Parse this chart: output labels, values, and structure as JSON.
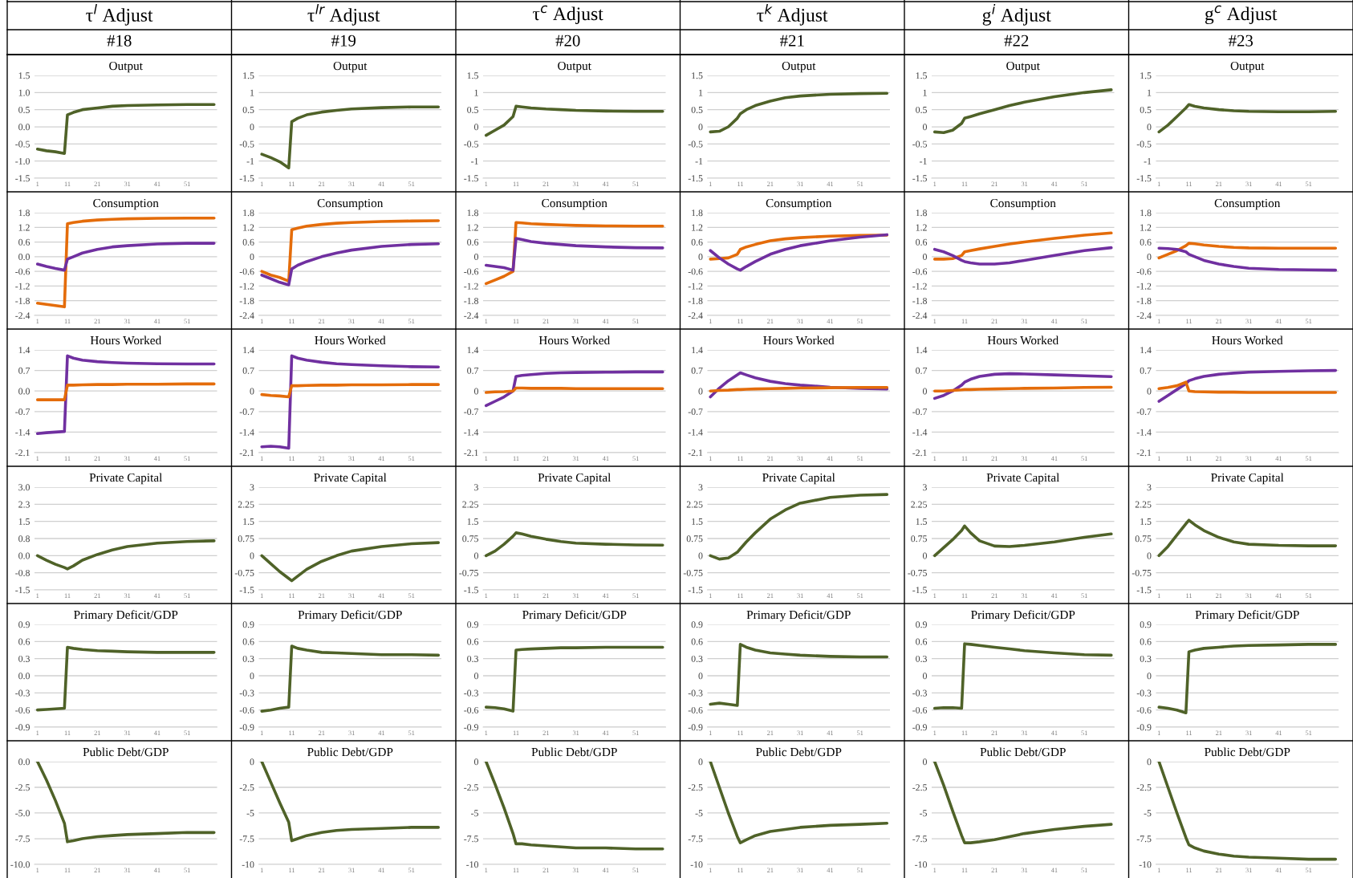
{
  "chart_data": [
    {
      "type": "line",
      "title": "Output",
      "annotations": [
        "τ$^{l}$ Adjust",
        "#18"
      ],
      "x": [
        1,
        4,
        7,
        10,
        11,
        13,
        16,
        21,
        26,
        31,
        41,
        51,
        60
      ],
      "xlim": [
        0,
        61
      ],
      "xticks": [
        1,
        11,
        21,
        31,
        41,
        51
      ],
      "ylim": [
        -1.5,
        1.5
      ],
      "yticks": [
        1.5,
        {
          "value": 1,
          "label": "1.0"
        },
        0.5,
        {
          "value": 0,
          "label": "0.0"
        },
        -0.5,
        {
          "value": -1,
          "label": "-1.0"
        },
        -1.5
      ],
      "grid": "y",
      "series": [
        {
          "color": "#4f6228",
          "values": [
            -0.65,
            -0.7,
            -0.73,
            -0.78,
            0.35,
            0.42,
            0.5,
            0.55,
            0.6,
            0.62,
            0.64,
            0.65,
            0.65
          ]
        }
      ]
    },
    {
      "type": "line",
      "title": "Output",
      "annotations": [
        "τ$^{lr}$ Adjust",
        "#19"
      ],
      "x": [
        1,
        4,
        7,
        10,
        11,
        13,
        16,
        21,
        26,
        31,
        41,
        51,
        60
      ],
      "xlim": [
        0,
        61
      ],
      "xticks": [
        1,
        11,
        21,
        31,
        41,
        51
      ],
      "ylim": [
        -1.5,
        1.5
      ],
      "yticks": [
        1.5,
        1,
        0.5,
        0,
        -0.5,
        -1,
        -1.5
      ],
      "grid": "y",
      "series": [
        {
          "color": "#4f6228",
          "values": [
            -0.8,
            -0.9,
            -1.02,
            -1.2,
            0.15,
            0.25,
            0.35,
            0.43,
            0.48,
            0.52,
            0.56,
            0.58,
            0.58
          ]
        }
      ]
    },
    {
      "type": "line",
      "title": "Output",
      "annotations": [
        "τ$^{c}$ Adjust",
        "#20"
      ],
      "x": [
        1,
        4,
        7,
        10,
        11,
        13,
        16,
        21,
        26,
        31,
        41,
        51,
        60
      ],
      "xlim": [
        0,
        61
      ],
      "xticks": [
        1,
        11,
        21,
        31,
        41,
        51
      ],
      "ylim": [
        -1.5,
        1.5
      ],
      "yticks": [
        1.5,
        1,
        0.5,
        0,
        -0.5,
        -1,
        -1.5
      ],
      "grid": "y",
      "series": [
        {
          "color": "#4f6228",
          "values": [
            -0.25,
            -0.1,
            0.05,
            0.3,
            0.6,
            0.58,
            0.55,
            0.52,
            0.5,
            0.48,
            0.46,
            0.45,
            0.45
          ]
        }
      ]
    },
    {
      "type": "line",
      "title": "Output",
      "annotations": [
        "τ$^{k}$ Adjust",
        "#21"
      ],
      "x": [
        1,
        4,
        7,
        10,
        11,
        13,
        16,
        21,
        26,
        31,
        41,
        51,
        60
      ],
      "xlim": [
        0,
        61
      ],
      "xticks": [
        1,
        11,
        21,
        31,
        41,
        51
      ],
      "ylim": [
        -1.5,
        1.5
      ],
      "yticks": [
        1.5,
        1,
        0.5,
        0,
        -0.5,
        -1,
        -1.5
      ],
      "grid": "y",
      "series": [
        {
          "color": "#4f6228",
          "values": [
            -0.15,
            -0.13,
            0.0,
            0.25,
            0.38,
            0.5,
            0.62,
            0.75,
            0.85,
            0.9,
            0.95,
            0.97,
            0.98
          ]
        }
      ]
    },
    {
      "type": "line",
      "title": "Output",
      "annotations": [
        "g$^{i}$ Adjust",
        "#22"
      ],
      "x": [
        1,
        4,
        7,
        10,
        11,
        13,
        16,
        21,
        26,
        31,
        41,
        51,
        60
      ],
      "xlim": [
        0,
        61
      ],
      "xticks": [
        1,
        11,
        21,
        31,
        41,
        51
      ],
      "ylim": [
        -1.5,
        1.5
      ],
      "yticks": [
        1.5,
        1,
        0.5,
        0,
        -0.5,
        -1,
        -1.5
      ],
      "grid": "y",
      "series": [
        {
          "color": "#4f6228",
          "values": [
            -0.15,
            -0.17,
            -0.1,
            0.1,
            0.25,
            0.3,
            0.38,
            0.5,
            0.62,
            0.72,
            0.88,
            1.0,
            1.08
          ]
        }
      ]
    },
    {
      "type": "line",
      "title": "Output",
      "annotations": [
        "g$^{c}$ Adjust",
        "#23"
      ],
      "x": [
        1,
        4,
        7,
        10,
        11,
        13,
        16,
        21,
        26,
        31,
        41,
        51,
        60
      ],
      "xlim": [
        0,
        61
      ],
      "xticks": [
        1,
        11,
        21,
        31,
        41,
        51
      ],
      "ylim": [
        -1.5,
        1.5
      ],
      "yticks": [
        1.5,
        1,
        0.5,
        0,
        -0.5,
        -1,
        -1.5
      ],
      "grid": "y",
      "series": [
        {
          "color": "#4f6228",
          "values": [
            -0.15,
            0.05,
            0.3,
            0.55,
            0.65,
            0.6,
            0.55,
            0.5,
            0.47,
            0.45,
            0.44,
            0.44,
            0.45
          ]
        }
      ]
    },
    {
      "type": "line",
      "title": "Consumption",
      "x": [
        1,
        4,
        7,
        10,
        11,
        13,
        16,
        21,
        26,
        31,
        41,
        51,
        60
      ],
      "xlim": [
        0,
        61
      ],
      "xticks": [
        1,
        11,
        21,
        31,
        41,
        51
      ],
      "ylim": [
        -2.4,
        1.8
      ],
      "yticks": [
        1.8,
        1.2,
        0.6,
        {
          "value": 0,
          "label": "0.0"
        },
        -0.6,
        -1.2,
        -1.8,
        -2.4
      ],
      "grid": "y",
      "series": [
        {
          "color": "#e46c0a",
          "values": [
            -1.9,
            -1.95,
            -2.0,
            -2.05,
            1.35,
            1.4,
            1.45,
            1.5,
            1.53,
            1.55,
            1.57,
            1.58,
            1.58
          ]
        },
        {
          "color": "#7030a0",
          "values": [
            -0.3,
            -0.4,
            -0.48,
            -0.55,
            -0.1,
            0.0,
            0.15,
            0.3,
            0.4,
            0.45,
            0.52,
            0.55,
            0.55
          ]
        }
      ]
    },
    {
      "type": "line",
      "title": "Consumption",
      "x": [
        1,
        4,
        7,
        10,
        11,
        13,
        16,
        21,
        26,
        31,
        41,
        51,
        60
      ],
      "xlim": [
        0,
        61
      ],
      "xticks": [
        1,
        11,
        21,
        31,
        41,
        51
      ],
      "ylim": [
        -2.4,
        1.8
      ],
      "yticks": [
        1.8,
        1.2,
        0.6,
        0,
        -0.6,
        -1.2,
        -1.8,
        -2.4
      ],
      "grid": "y",
      "series": [
        {
          "color": "#e46c0a",
          "values": [
            -0.6,
            -0.75,
            -0.85,
            -1.0,
            1.1,
            1.17,
            1.25,
            1.32,
            1.37,
            1.4,
            1.44,
            1.46,
            1.47
          ]
        },
        {
          "color": "#7030a0",
          "values": [
            -0.75,
            -0.9,
            -1.05,
            -1.15,
            -0.5,
            -0.35,
            -0.2,
            0.0,
            0.15,
            0.27,
            0.42,
            0.5,
            0.53
          ]
        }
      ]
    },
    {
      "type": "line",
      "title": "Consumption",
      "x": [
        1,
        4,
        7,
        10,
        11,
        13,
        16,
        21,
        26,
        31,
        41,
        51,
        60
      ],
      "xlim": [
        0,
        61
      ],
      "xticks": [
        1,
        11,
        21,
        31,
        41,
        51
      ],
      "ylim": [
        -2.4,
        1.8
      ],
      "yticks": [
        1.8,
        1.2,
        0.6,
        0,
        -0.6,
        -1.2,
        -1.8,
        -2.4
      ],
      "grid": "y",
      "series": [
        {
          "color": "#e46c0a",
          "values": [
            -1.1,
            -0.95,
            -0.8,
            -0.6,
            1.4,
            1.38,
            1.35,
            1.32,
            1.3,
            1.28,
            1.26,
            1.25,
            1.25
          ]
        },
        {
          "color": "#7030a0",
          "values": [
            -0.35,
            -0.4,
            -0.45,
            -0.55,
            0.75,
            0.7,
            0.62,
            0.55,
            0.5,
            0.45,
            0.4,
            0.37,
            0.36
          ]
        }
      ]
    },
    {
      "type": "line",
      "title": "Consumption",
      "x": [
        1,
        4,
        7,
        10,
        11,
        13,
        16,
        21,
        26,
        31,
        41,
        51,
        60
      ],
      "xlim": [
        0,
        61
      ],
      "xticks": [
        1,
        11,
        21,
        31,
        41,
        51
      ],
      "ylim": [
        -2.4,
        1.8
      ],
      "yticks": [
        1.8,
        1.2,
        0.6,
        0,
        -0.6,
        -1.2,
        -1.8,
        -2.4
      ],
      "grid": "y",
      "series": [
        {
          "color": "#e46c0a",
          "values": [
            -0.1,
            -0.08,
            -0.05,
            0.1,
            0.3,
            0.4,
            0.5,
            0.65,
            0.73,
            0.78,
            0.84,
            0.87,
            0.88
          ]
        },
        {
          "color": "#7030a0",
          "values": [
            0.25,
            -0.05,
            -0.3,
            -0.5,
            -0.55,
            -0.4,
            -0.2,
            0.1,
            0.3,
            0.45,
            0.65,
            0.8,
            0.9
          ]
        }
      ]
    },
    {
      "type": "line",
      "title": "Consumption",
      "x": [
        1,
        4,
        7,
        10,
        11,
        13,
        16,
        21,
        26,
        31,
        41,
        51,
        60
      ],
      "xlim": [
        0,
        61
      ],
      "xticks": [
        1,
        11,
        21,
        31,
        41,
        51
      ],
      "ylim": [
        -2.4,
        1.8
      ],
      "yticks": [
        1.8,
        1.2,
        0.6,
        0,
        -0.6,
        -1.2,
        -1.8,
        -2.4
      ],
      "grid": "y",
      "series": [
        {
          "color": "#e46c0a",
          "values": [
            -0.1,
            -0.1,
            -0.08,
            0.05,
            0.2,
            0.25,
            0.32,
            0.42,
            0.52,
            0.6,
            0.75,
            0.88,
            0.97
          ]
        },
        {
          "color": "#7030a0",
          "values": [
            0.3,
            0.2,
            0.05,
            -0.15,
            -0.2,
            -0.25,
            -0.3,
            -0.3,
            -0.25,
            -0.15,
            0.05,
            0.25,
            0.37
          ]
        }
      ]
    },
    {
      "type": "line",
      "title": "Consumption",
      "x": [
        1,
        4,
        7,
        10,
        11,
        13,
        16,
        21,
        26,
        31,
        41,
        51,
        60
      ],
      "xlim": [
        0,
        61
      ],
      "xticks": [
        1,
        11,
        21,
        31,
        41,
        51
      ],
      "ylim": [
        -2.4,
        1.8
      ],
      "yticks": [
        1.8,
        1.2,
        0.6,
        0,
        -0.6,
        -1.2,
        -1.8,
        -2.4
      ],
      "grid": "y",
      "series": [
        {
          "color": "#e46c0a",
          "values": [
            -0.05,
            0.1,
            0.25,
            0.45,
            0.55,
            0.53,
            0.48,
            0.42,
            0.38,
            0.36,
            0.35,
            0.35,
            0.35
          ]
        },
        {
          "color": "#7030a0",
          "values": [
            0.35,
            0.33,
            0.3,
            0.2,
            0.1,
            0.0,
            -0.15,
            -0.3,
            -0.4,
            -0.47,
            -0.52,
            -0.54,
            -0.55
          ]
        }
      ]
    },
    {
      "type": "line",
      "title": "Hours Worked",
      "x": [
        1,
        4,
        7,
        10,
        11,
        13,
        16,
        21,
        26,
        31,
        41,
        51,
        60
      ],
      "xlim": [
        0,
        61
      ],
      "xticks": [
        1,
        11,
        21,
        31,
        41,
        51
      ],
      "ylim": [
        -2.1,
        1.4
      ],
      "yticks": [
        1.4,
        0.7,
        {
          "value": 0,
          "label": "0.0"
        },
        -0.7,
        -1.4,
        -2.1
      ],
      "grid": "y",
      "series": [
        {
          "color": "#7030a0",
          "values": [
            -1.45,
            -1.42,
            -1.4,
            -1.38,
            1.2,
            1.12,
            1.05,
            1.0,
            0.97,
            0.95,
            0.93,
            0.92,
            0.92
          ]
        },
        {
          "color": "#e46c0a",
          "values": [
            -0.3,
            -0.3,
            -0.3,
            -0.3,
            0.2,
            0.2,
            0.21,
            0.22,
            0.22,
            0.23,
            0.23,
            0.24,
            0.24
          ]
        }
      ]
    },
    {
      "type": "line",
      "title": "Hours Worked",
      "x": [
        1,
        4,
        7,
        10,
        11,
        13,
        16,
        21,
        26,
        31,
        41,
        51,
        60
      ],
      "xlim": [
        0,
        61
      ],
      "xticks": [
        1,
        11,
        21,
        31,
        41,
        51
      ],
      "ylim": [
        -2.1,
        1.4
      ],
      "yticks": [
        1.4,
        0.7,
        0,
        -0.7,
        -1.4,
        -2.1
      ],
      "grid": "y",
      "series": [
        {
          "color": "#7030a0",
          "values": [
            -1.9,
            -1.88,
            -1.9,
            -1.95,
            1.2,
            1.12,
            1.05,
            0.98,
            0.93,
            0.9,
            0.86,
            0.83,
            0.82
          ]
        },
        {
          "color": "#e46c0a",
          "values": [
            -0.12,
            -0.15,
            -0.17,
            -0.2,
            0.18,
            0.18,
            0.19,
            0.2,
            0.2,
            0.21,
            0.21,
            0.22,
            0.22
          ]
        }
      ]
    },
    {
      "type": "line",
      "title": "Hours Worked",
      "x": [
        1,
        4,
        7,
        10,
        11,
        13,
        16,
        21,
        26,
        31,
        41,
        51,
        60
      ],
      "xlim": [
        0,
        61
      ],
      "xticks": [
        1,
        11,
        21,
        31,
        41,
        51
      ],
      "ylim": [
        -2.1,
        1.4
      ],
      "yticks": [
        1.4,
        0.7,
        0,
        -0.7,
        -1.4,
        -2.1
      ],
      "grid": "y",
      "series": [
        {
          "color": "#7030a0",
          "values": [
            -0.5,
            -0.35,
            -0.2,
            0.0,
            0.5,
            0.53,
            0.56,
            0.6,
            0.62,
            0.63,
            0.64,
            0.65,
            0.65
          ]
        },
        {
          "color": "#e46c0a",
          "values": [
            -0.05,
            -0.03,
            -0.02,
            0.0,
            0.1,
            0.1,
            0.09,
            0.09,
            0.09,
            0.08,
            0.08,
            0.08,
            0.08
          ]
        }
      ]
    },
    {
      "type": "line",
      "title": "Hours Worked",
      "x": [
        1,
        4,
        7,
        10,
        11,
        13,
        16,
        21,
        26,
        31,
        41,
        51,
        60
      ],
      "xlim": [
        0,
        61
      ],
      "xticks": [
        1,
        11,
        21,
        31,
        41,
        51
      ],
      "ylim": [
        -2.1,
        1.4
      ],
      "yticks": [
        1.4,
        0.7,
        0,
        -0.7,
        -1.4,
        -2.1
      ],
      "grid": "y",
      "series": [
        {
          "color": "#7030a0",
          "values": [
            -0.2,
            0.1,
            0.35,
            0.55,
            0.62,
            0.55,
            0.45,
            0.33,
            0.25,
            0.2,
            0.13,
            0.09,
            0.07
          ]
        },
        {
          "color": "#e46c0a",
          "values": [
            0.0,
            0.02,
            0.03,
            0.05,
            0.05,
            0.06,
            0.07,
            0.08,
            0.09,
            0.1,
            0.11,
            0.12,
            0.12
          ]
        }
      ]
    },
    {
      "type": "line",
      "title": "Hours Worked",
      "x": [
        1,
        4,
        7,
        10,
        11,
        13,
        16,
        21,
        26,
        31,
        41,
        51,
        60
      ],
      "xlim": [
        0,
        61
      ],
      "xticks": [
        1,
        11,
        21,
        31,
        41,
        51
      ],
      "ylim": [
        -2.1,
        1.4
      ],
      "yticks": [
        1.4,
        0.7,
        0,
        -0.7,
        -1.4,
        -2.1
      ],
      "grid": "y",
      "series": [
        {
          "color": "#7030a0",
          "values": [
            -0.25,
            -0.15,
            0.0,
            0.2,
            0.3,
            0.4,
            0.5,
            0.57,
            0.59,
            0.58,
            0.55,
            0.52,
            0.49
          ]
        },
        {
          "color": "#e46c0a",
          "values": [
            0.0,
            0.0,
            0.02,
            0.04,
            0.05,
            0.05,
            0.06,
            0.07,
            0.08,
            0.09,
            0.1,
            0.12,
            0.13
          ]
        }
      ]
    },
    {
      "type": "line",
      "title": "Hours Worked",
      "x": [
        1,
        4,
        7,
        10,
        11,
        13,
        16,
        21,
        26,
        31,
        41,
        51,
        60
      ],
      "xlim": [
        0,
        61
      ],
      "xticks": [
        1,
        11,
        21,
        31,
        41,
        51
      ],
      "ylim": [
        -2.1,
        1.4
      ],
      "yticks": [
        1.4,
        0.7,
        0,
        -0.7,
        -1.4,
        -2.1
      ],
      "grid": "y",
      "series": [
        {
          "color": "#7030a0",
          "values": [
            -0.35,
            -0.15,
            0.05,
            0.25,
            0.35,
            0.42,
            0.5,
            0.57,
            0.61,
            0.64,
            0.67,
            0.69,
            0.7
          ]
        },
        {
          "color": "#e46c0a",
          "values": [
            0.08,
            0.12,
            0.18,
            0.3,
            0.0,
            -0.02,
            -0.03,
            -0.04,
            -0.04,
            -0.05,
            -0.05,
            -0.05,
            -0.05
          ]
        }
      ]
    },
    {
      "type": "line",
      "title": "Private Capital",
      "x": [
        1,
        4,
        7,
        10,
        11,
        13,
        16,
        21,
        26,
        31,
        41,
        51,
        60
      ],
      "xlim": [
        0,
        61
      ],
      "xticks": [
        1,
        11,
        21,
        31,
        41,
        51
      ],
      "ylim": [
        -1.5,
        3
      ],
      "yticks": [
        {
          "value": 3,
          "label": "3.0"
        },
        {
          "value": 2.25,
          "label": "2.3"
        },
        1.5,
        {
          "value": 0.75,
          "label": "0.8"
        },
        {
          "value": 0,
          "label": "0.0"
        },
        {
          "value": -0.75,
          "label": "-0.8"
        },
        -1.5
      ],
      "grid": "y",
      "series": [
        {
          "color": "#4f6228",
          "values": [
            0,
            -0.2,
            -0.38,
            -0.52,
            -0.58,
            -0.45,
            -0.2,
            0.05,
            0.25,
            0.4,
            0.55,
            0.62,
            0.65
          ]
        }
      ]
    },
    {
      "type": "line",
      "title": "Private Capital",
      "x": [
        1,
        4,
        7,
        10,
        11,
        13,
        16,
        21,
        26,
        31,
        41,
        51,
        60
      ],
      "xlim": [
        0,
        61
      ],
      "xticks": [
        1,
        11,
        21,
        31,
        41,
        51
      ],
      "ylim": [
        -1.5,
        3
      ],
      "yticks": [
        3,
        2.25,
        1.5,
        0.75,
        0,
        -0.75,
        -1.5
      ],
      "grid": "y",
      "series": [
        {
          "color": "#4f6228",
          "values": [
            0,
            -0.35,
            -0.7,
            -1.0,
            -1.1,
            -0.9,
            -0.6,
            -0.25,
            0.0,
            0.2,
            0.4,
            0.52,
            0.57
          ]
        }
      ]
    },
    {
      "type": "line",
      "title": "Private Capital",
      "x": [
        1,
        4,
        7,
        10,
        11,
        13,
        16,
        21,
        26,
        31,
        41,
        51,
        60
      ],
      "xlim": [
        0,
        61
      ],
      "xticks": [
        1,
        11,
        21,
        31,
        41,
        51
      ],
      "ylim": [
        -1.5,
        3
      ],
      "yticks": [
        3,
        2.25,
        1.5,
        0.75,
        0,
        -0.75,
        -1.5
      ],
      "grid": "y",
      "series": [
        {
          "color": "#4f6228",
          "values": [
            0,
            0.2,
            0.5,
            0.85,
            1.0,
            0.95,
            0.85,
            0.72,
            0.62,
            0.55,
            0.5,
            0.47,
            0.46
          ]
        }
      ]
    },
    {
      "type": "line",
      "title": "Private Capital",
      "x": [
        1,
        4,
        7,
        10,
        11,
        13,
        16,
        21,
        26,
        31,
        41,
        51,
        60
      ],
      "xlim": [
        0,
        61
      ],
      "xticks": [
        1,
        11,
        21,
        31,
        41,
        51
      ],
      "ylim": [
        -1.5,
        3
      ],
      "yticks": [
        3,
        2.25,
        1.5,
        0.75,
        0,
        -0.75,
        -1.5
      ],
      "grid": "y",
      "series": [
        {
          "color": "#4f6228",
          "values": [
            0,
            -0.15,
            -0.1,
            0.15,
            0.3,
            0.6,
            1.0,
            1.6,
            2.0,
            2.3,
            2.55,
            2.65,
            2.68
          ]
        }
      ]
    },
    {
      "type": "line",
      "title": "Private Capital",
      "x": [
        1,
        4,
        7,
        10,
        11,
        13,
        16,
        21,
        26,
        31,
        41,
        51,
        60
      ],
      "xlim": [
        0,
        61
      ],
      "xticks": [
        1,
        11,
        21,
        31,
        41,
        51
      ],
      "ylim": [
        -1.5,
        3
      ],
      "yticks": [
        3,
        2.25,
        1.5,
        0.75,
        0,
        -0.75,
        -1.5
      ],
      "grid": "y",
      "series": [
        {
          "color": "#4f6228",
          "values": [
            0,
            0.35,
            0.7,
            1.1,
            1.3,
            1.0,
            0.65,
            0.42,
            0.4,
            0.45,
            0.6,
            0.8,
            0.95
          ]
        }
      ]
    },
    {
      "type": "line",
      "title": "Private Capital",
      "x": [
        1,
        4,
        7,
        10,
        11,
        13,
        16,
        21,
        26,
        31,
        41,
        51,
        60
      ],
      "xlim": [
        0,
        61
      ],
      "xticks": [
        1,
        11,
        21,
        31,
        41,
        51
      ],
      "ylim": [
        -1.5,
        3
      ],
      "yticks": [
        3,
        2.25,
        1.5,
        0.75,
        0,
        -0.75,
        -1.5
      ],
      "grid": "y",
      "series": [
        {
          "color": "#4f6228",
          "values": [
            0,
            0.4,
            0.9,
            1.4,
            1.55,
            1.35,
            1.1,
            0.8,
            0.6,
            0.5,
            0.45,
            0.43,
            0.43
          ]
        }
      ]
    },
    {
      "type": "line",
      "title": "Primary Deficit/GDP",
      "x": [
        1,
        4,
        7,
        10,
        11,
        13,
        16,
        21,
        26,
        31,
        41,
        51,
        60
      ],
      "xlim": [
        0,
        61
      ],
      "xticks": [
        1,
        11,
        21,
        31,
        41,
        51
      ],
      "ylim": [
        -0.9,
        0.9
      ],
      "yticks": [
        0.9,
        0.6,
        0.3,
        {
          "value": 0,
          "label": "0.0"
        },
        -0.3,
        -0.6,
        -0.9
      ],
      "grid": "y",
      "series": [
        {
          "color": "#4f6228",
          "values": [
            -0.6,
            -0.59,
            -0.58,
            -0.57,
            0.5,
            0.48,
            0.46,
            0.44,
            0.43,
            0.42,
            0.41,
            0.41,
            0.41
          ]
        }
      ]
    },
    {
      "type": "line",
      "title": "Primary Deficit/GDP",
      "x": [
        1,
        4,
        7,
        10,
        11,
        13,
        16,
        21,
        26,
        31,
        41,
        51,
        60
      ],
      "xlim": [
        0,
        61
      ],
      "xticks": [
        1,
        11,
        21,
        31,
        41,
        51
      ],
      "ylim": [
        -0.9,
        0.9
      ],
      "yticks": [
        0.9,
        0.6,
        0.3,
        0,
        -0.3,
        -0.6,
        -0.9
      ],
      "grid": "y",
      "series": [
        {
          "color": "#4f6228",
          "values": [
            -0.62,
            -0.6,
            -0.57,
            -0.55,
            0.52,
            0.48,
            0.45,
            0.41,
            0.4,
            0.39,
            0.37,
            0.37,
            0.36
          ]
        }
      ]
    },
    {
      "type": "line",
      "title": "Primary Deficit/GDP",
      "x": [
        1,
        4,
        7,
        10,
        11,
        13,
        16,
        21,
        26,
        31,
        41,
        51,
        60
      ],
      "xlim": [
        0,
        61
      ],
      "xticks": [
        1,
        11,
        21,
        31,
        41,
        51
      ],
      "ylim": [
        -0.9,
        0.9
      ],
      "yticks": [
        0.9,
        0.6,
        0.3,
        0,
        -0.3,
        -0.6,
        -0.9
      ],
      "grid": "y",
      "series": [
        {
          "color": "#4f6228",
          "values": [
            -0.55,
            -0.56,
            -0.58,
            -0.62,
            0.45,
            0.46,
            0.47,
            0.48,
            0.49,
            0.49,
            0.5,
            0.5,
            0.5
          ]
        }
      ]
    },
    {
      "type": "line",
      "title": "Primary Deficit/GDP",
      "x": [
        1,
        4,
        7,
        10,
        11,
        13,
        16,
        21,
        26,
        31,
        41,
        51,
        60
      ],
      "xlim": [
        0,
        61
      ],
      "xticks": [
        1,
        11,
        21,
        31,
        41,
        51
      ],
      "ylim": [
        -0.9,
        0.9
      ],
      "yticks": [
        0.9,
        0.6,
        0.3,
        0,
        -0.3,
        -0.6,
        -0.9
      ],
      "grid": "y",
      "series": [
        {
          "color": "#4f6228",
          "values": [
            -0.5,
            -0.48,
            -0.5,
            -0.52,
            0.55,
            0.5,
            0.45,
            0.4,
            0.38,
            0.36,
            0.34,
            0.33,
            0.33
          ]
        }
      ]
    },
    {
      "type": "line",
      "title": "Primary Deficit/GDP",
      "x": [
        1,
        4,
        7,
        10,
        11,
        13,
        16,
        21,
        26,
        31,
        41,
        51,
        60
      ],
      "xlim": [
        0,
        61
      ],
      "xticks": [
        1,
        11,
        21,
        31,
        41,
        51
      ],
      "ylim": [
        -0.9,
        0.9
      ],
      "yticks": [
        0.9,
        0.6,
        0.3,
        0,
        -0.3,
        -0.6,
        -0.9
      ],
      "grid": "y",
      "series": [
        {
          "color": "#4f6228",
          "values": [
            -0.57,
            -0.56,
            -0.56,
            -0.57,
            0.56,
            0.55,
            0.53,
            0.5,
            0.47,
            0.44,
            0.4,
            0.37,
            0.36
          ]
        }
      ]
    },
    {
      "type": "line",
      "title": "Primary Deficit/GDP",
      "x": [
        1,
        4,
        7,
        10,
        11,
        13,
        16,
        21,
        26,
        31,
        41,
        51,
        60
      ],
      "xlim": [
        0,
        61
      ],
      "xticks": [
        1,
        11,
        21,
        31,
        41,
        51
      ],
      "ylim": [
        -0.9,
        0.9
      ],
      "yticks": [
        0.9,
        0.6,
        0.3,
        0,
        -0.3,
        -0.6,
        -0.9
      ],
      "grid": "y",
      "series": [
        {
          "color": "#4f6228",
          "values": [
            -0.55,
            -0.57,
            -0.6,
            -0.65,
            0.42,
            0.45,
            0.48,
            0.5,
            0.52,
            0.53,
            0.54,
            0.55,
            0.55
          ]
        }
      ]
    },
    {
      "type": "line",
      "title": "Public Debt/GDP",
      "x": [
        1,
        4,
        7,
        10,
        11,
        13,
        16,
        21,
        26,
        31,
        41,
        51,
        60
      ],
      "xlim": [
        0,
        61
      ],
      "xticks": [
        1,
        11,
        21,
        31,
        41,
        51
      ],
      "ylim": [
        -10,
        0
      ],
      "yticks": [
        {
          "value": 0,
          "label": "0.0"
        },
        -2.5,
        {
          "value": -5,
          "label": "-5.0"
        },
        -7.5,
        {
          "value": -10,
          "label": "-10.0"
        }
      ],
      "grid": "y",
      "series": [
        {
          "color": "#4f6228",
          "values": [
            0,
            -1.8,
            -3.8,
            -6.0,
            -7.8,
            -7.7,
            -7.5,
            -7.3,
            -7.2,
            -7.1,
            -7.0,
            -6.9,
            -6.9
          ]
        }
      ]
    },
    {
      "type": "line",
      "title": "Public Debt/GDP",
      "x": [
        1,
        4,
        7,
        10,
        11,
        13,
        16,
        21,
        26,
        31,
        41,
        51,
        60
      ],
      "xlim": [
        0,
        61
      ],
      "xticks": [
        1,
        11,
        21,
        31,
        41,
        51
      ],
      "ylim": [
        -10,
        0
      ],
      "yticks": [
        0,
        -2.5,
        -5,
        -7.5,
        -10
      ],
      "grid": "y",
      "series": [
        {
          "color": "#4f6228",
          "values": [
            0,
            -2,
            -4,
            -5.9,
            -7.7,
            -7.5,
            -7.2,
            -6.9,
            -6.7,
            -6.6,
            -6.5,
            -6.4,
            -6.4
          ]
        }
      ]
    },
    {
      "type": "line",
      "title": "Public Debt/GDP",
      "x": [
        1,
        4,
        7,
        10,
        11,
        13,
        16,
        21,
        26,
        31,
        41,
        51,
        60
      ],
      "xlim": [
        0,
        61
      ],
      "xticks": [
        1,
        11,
        21,
        31,
        41,
        51
      ],
      "ylim": [
        -10,
        0
      ],
      "yticks": [
        0,
        -2.5,
        -5,
        -7.5,
        -10
      ],
      "grid": "y",
      "series": [
        {
          "color": "#4f6228",
          "values": [
            0,
            -2.2,
            -4.5,
            -7.0,
            -8.0,
            -8.0,
            -8.1,
            -8.2,
            -8.3,
            -8.4,
            -8.4,
            -8.5,
            -8.5
          ]
        }
      ]
    },
    {
      "type": "line",
      "title": "Public Debt/GDP",
      "x": [
        1,
        4,
        7,
        10,
        11,
        13,
        16,
        21,
        26,
        31,
        41,
        51,
        60
      ],
      "xlim": [
        0,
        61
      ],
      "xticks": [
        1,
        11,
        21,
        31,
        41,
        51
      ],
      "ylim": [
        -10,
        0
      ],
      "yticks": [
        0,
        -2.5,
        -5,
        -7.5,
        -10
      ],
      "grid": "y",
      "series": [
        {
          "color": "#4f6228",
          "values": [
            0,
            -2.5,
            -5.0,
            -7.3,
            -7.9,
            -7.6,
            -7.2,
            -6.8,
            -6.6,
            -6.4,
            -6.2,
            -6.1,
            -6.0
          ]
        }
      ]
    },
    {
      "type": "line",
      "title": "Public Debt/GDP",
      "x": [
        1,
        4,
        7,
        10,
        11,
        13,
        16,
        21,
        26,
        31,
        41,
        51,
        60
      ],
      "xlim": [
        0,
        61
      ],
      "xticks": [
        1,
        11,
        21,
        31,
        41,
        51
      ],
      "ylim": [
        -10,
        0
      ],
      "yticks": [
        0,
        -2.5,
        -5,
        -7.5,
        -10
      ],
      "grid": "y",
      "series": [
        {
          "color": "#4f6228",
          "values": [
            0,
            -2.3,
            -4.8,
            -7.2,
            -7.9,
            -7.9,
            -7.8,
            -7.6,
            -7.3,
            -7.0,
            -6.6,
            -6.3,
            -6.1
          ]
        }
      ]
    },
    {
      "type": "line",
      "title": "Public Debt/GDP",
      "x": [
        1,
        4,
        7,
        10,
        11,
        13,
        16,
        21,
        26,
        31,
        41,
        51,
        60
      ],
      "xlim": [
        0,
        61
      ],
      "xticks": [
        1,
        11,
        21,
        31,
        41,
        51
      ],
      "ylim": [
        -10,
        0
      ],
      "yticks": [
        0,
        -2.5,
        -5,
        -7.5,
        -10
      ],
      "grid": "y",
      "series": [
        {
          "color": "#4f6228",
          "values": [
            0,
            -2.5,
            -5.0,
            -7.4,
            -8.1,
            -8.4,
            -8.7,
            -9.0,
            -9.2,
            -9.3,
            -9.4,
            -9.5,
            -9.5
          ]
        }
      ]
    }
  ]
}
